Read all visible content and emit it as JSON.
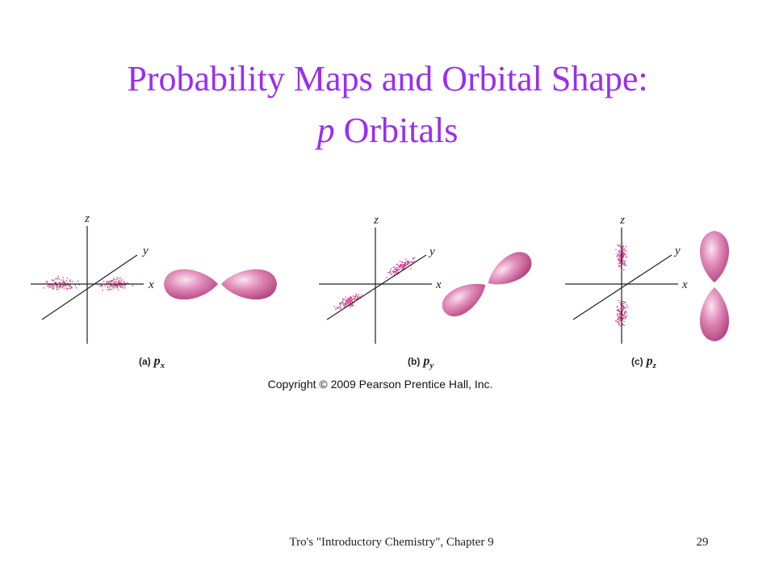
{
  "title": {
    "line1": "Probability Maps and Orbital Shape:",
    "line2_italic": "p",
    "line2_rest": "Orbitals"
  },
  "panels": [
    {
      "letter": "(a)",
      "orbital": "p",
      "subscript": "x",
      "axis_labels": [
        "z",
        "y",
        "x"
      ]
    },
    {
      "letter": "(b)",
      "orbital": "p",
      "subscript": "y",
      "axis_labels": [
        "z",
        "y",
        "x"
      ]
    },
    {
      "letter": "(c)",
      "orbital": "p",
      "subscript": "z",
      "axis_labels": [
        "z",
        "y",
        "x"
      ]
    }
  ],
  "copyright": "Copyright © 2009 Pearson Prentice Hall, Inc.",
  "footer": {
    "source": "Tro's \"Introductory Chemistry\", Chapter 9",
    "page": "29"
  }
}
